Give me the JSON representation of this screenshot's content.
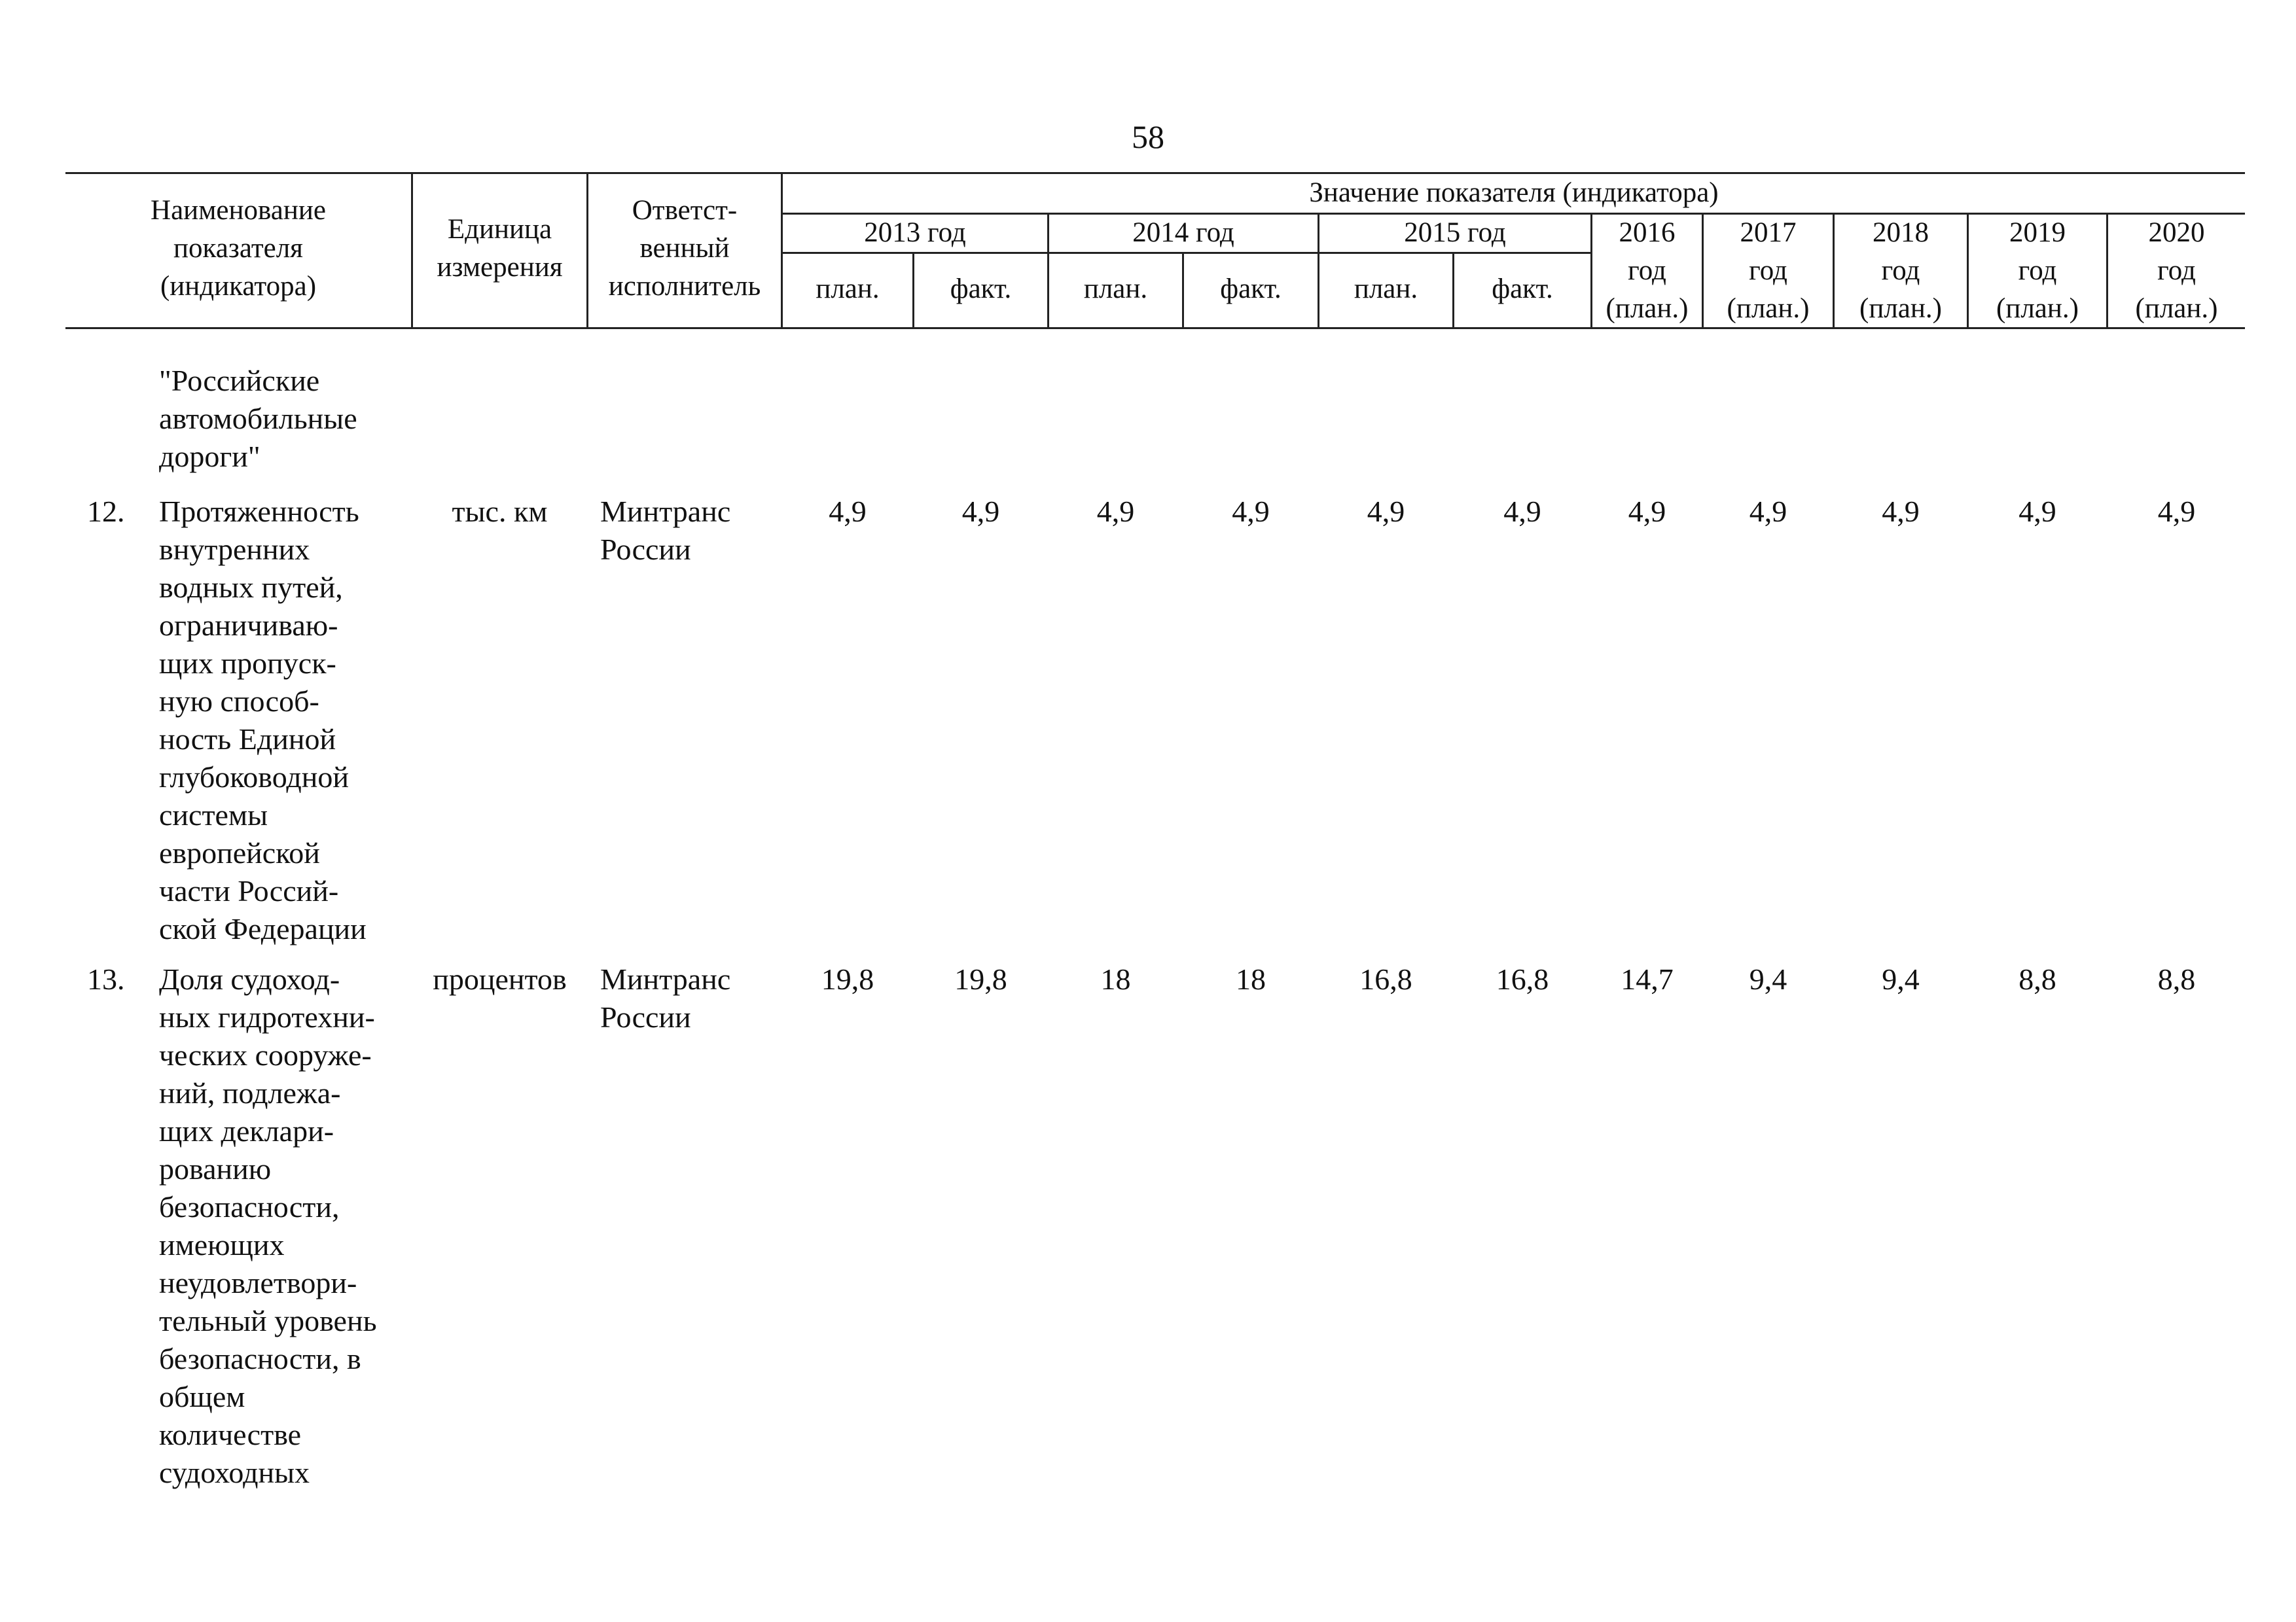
{
  "page": {
    "number": "58"
  },
  "header": {
    "name": [
      "Наименование",
      "показателя",
      "(индикатора)"
    ],
    "unit": [
      "Единица",
      "измерения"
    ],
    "executor": [
      "Ответст-",
      "венный",
      "исполнитель"
    ],
    "value_group": "Значение показателя (индикатора)",
    "years": [
      "2013 год",
      "2014 год",
      "2015 год"
    ],
    "plan": "план.",
    "fact": "факт.",
    "later_years": [
      [
        "2016",
        "год",
        "(план.)"
      ],
      [
        "2017",
        "год",
        "(план.)"
      ],
      [
        "2018",
        "год",
        "(план.)"
      ],
      [
        "2019",
        "год",
        "(план.)"
      ],
      [
        "2020",
        "год",
        "(план.)"
      ]
    ]
  },
  "continuation": [
    "\"Российские",
    "автомобильные",
    "дороги\""
  ],
  "rows": [
    {
      "num": "12.",
      "name": [
        "Протяженность",
        "внутренних",
        "водных путей,",
        "ограничиваю-",
        "щих пропуск-",
        "ную способ-",
        "ность Единой",
        "глубоководной",
        "системы",
        "европейской",
        "части Россий-",
        "ской Федерации"
      ],
      "unit": "тыс. км",
      "executor": [
        "Минтранс",
        "России"
      ],
      "values": [
        "4,9",
        "4,9",
        "4,9",
        "4,9",
        "4,9",
        "4,9",
        "4,9",
        "4,9",
        "4,9",
        "4,9",
        "4,9"
      ]
    },
    {
      "num": "13.",
      "name": [
        "Доля судоход-",
        "ных гидротехни-",
        "ческих сооруже-",
        "ний, подлежа-",
        "щих деклари-",
        "рованию",
        "безопасности,",
        "имеющих",
        "неудовлетвори-",
        "тельный уровень",
        "безопасности, в",
        "общем",
        "количестве",
        "судоходных"
      ],
      "unit": "процентов",
      "executor": [
        "Минтранс",
        "России"
      ],
      "values": [
        "19,8",
        "19,8",
        "18",
        "18",
        "16,8",
        "16,8",
        "14,7",
        "9,4",
        "9,4",
        "8,8",
        "8,8"
      ]
    }
  ]
}
